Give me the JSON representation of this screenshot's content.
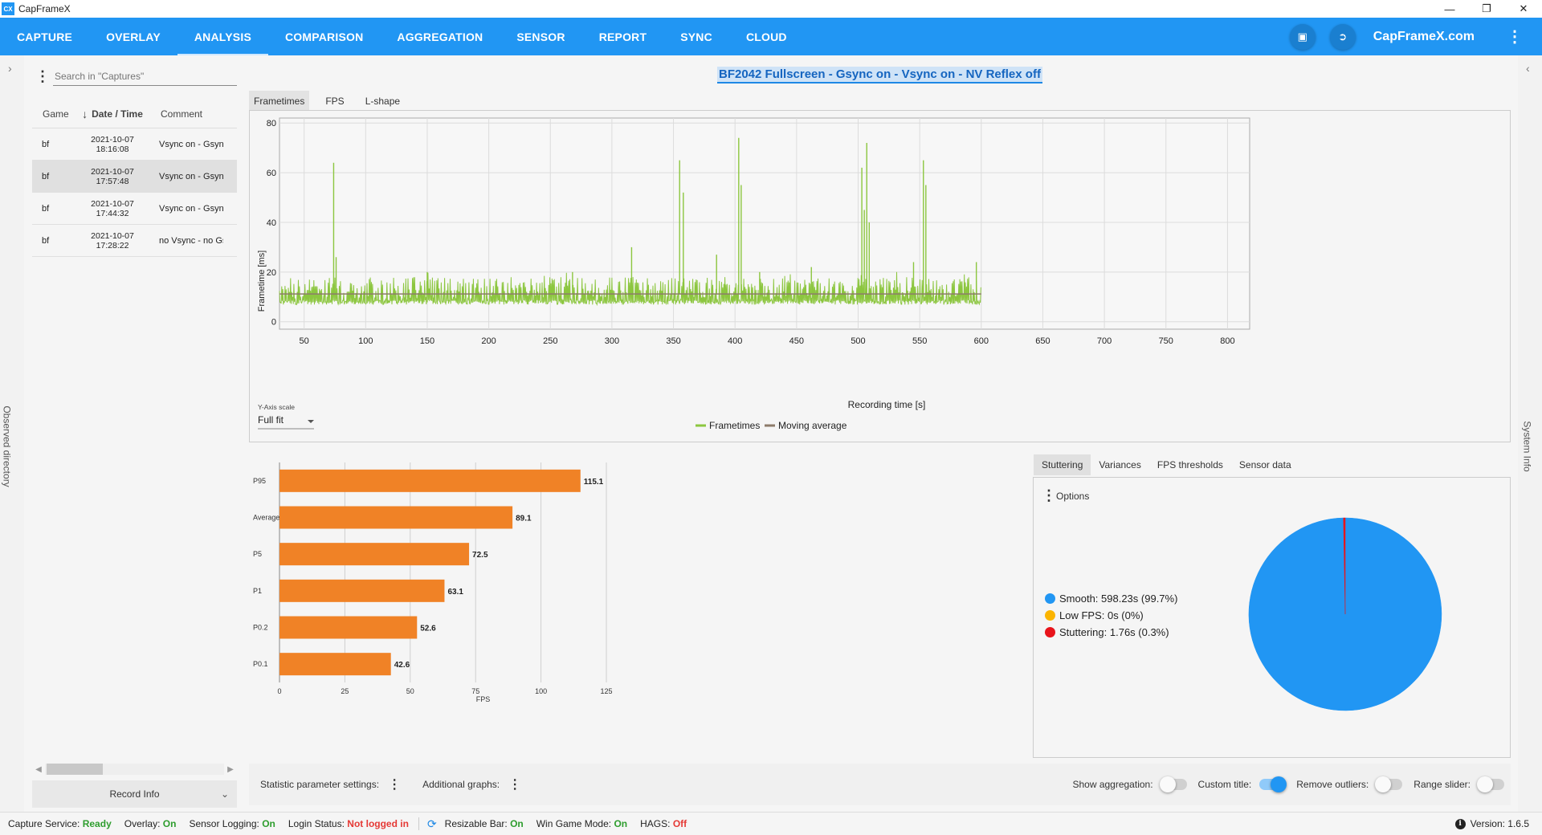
{
  "window": {
    "title": "CapFrameX",
    "logo_text": "CX"
  },
  "nav": {
    "tabs": [
      "CAPTURE",
      "OVERLAY",
      "ANALYSIS",
      "COMPARISON",
      "AGGREGATION",
      "SENSOR",
      "REPORT",
      "SYNC",
      "CLOUD"
    ],
    "active_tab": "ANALYSIS",
    "site_link": "CapFrameX.com"
  },
  "side": {
    "left_vertical_label": "Observed directory",
    "right_vertical_label": "System Info"
  },
  "captures": {
    "search_placeholder": "Search in \"Captures\"",
    "columns": {
      "game": "Game",
      "date": "Date / Time",
      "comment": "Comment"
    },
    "rows": [
      {
        "game": "bf",
        "date": "2021-10-07",
        "time": "18:16:08",
        "comment": "Vsync on - Gsync"
      },
      {
        "game": "bf",
        "date": "2021-10-07",
        "time": "17:57:48",
        "comment": "Vsync on - Gsync"
      },
      {
        "game": "bf",
        "date": "2021-10-07",
        "time": "17:44:32",
        "comment": "Vsync on - Gsync"
      },
      {
        "game": "bf",
        "date": "2021-10-07",
        "time": "17:28:22",
        "comment": "no Vsync - no Gsync"
      }
    ],
    "selected_index": 1,
    "record_info_label": "Record Info"
  },
  "analysis": {
    "title": "BF2042 Fullscreen - Gsync on - Vsync on - NV Reflex off",
    "chart_tabs": [
      "Frametimes",
      "FPS",
      "L-shape"
    ],
    "active_chart_tab": "Frametimes",
    "y_axis_scale_label": "Y-Axis scale",
    "y_axis_scale_value": "Full fit",
    "right_tabs": [
      "Stuttering",
      "Variances",
      "FPS thresholds",
      "Sensor data"
    ],
    "active_right_tab": "Stuttering",
    "options_label": "Options"
  },
  "chart_data": [
    {
      "type": "line",
      "xlabel": "Recording time [s]",
      "ylabel": "Frametime [ms]",
      "xlim": [
        30,
        818
      ],
      "ylim": [
        -3,
        82
      ],
      "x_ticks": [
        50,
        100,
        150,
        200,
        250,
        300,
        350,
        400,
        450,
        500,
        550,
        600,
        650,
        700,
        750,
        800
      ],
      "y_ticks": [
        0,
        20,
        40,
        60,
        80
      ],
      "grid": true,
      "legend_placement": "bottom",
      "series": [
        {
          "name": "Frametimes",
          "color": "#8cc63f",
          "x_range": [
            30,
            600
          ],
          "baseline": 11.2,
          "noise_band": [
            7,
            18
          ]
        },
        {
          "name": "Moving average",
          "color": "#8d7b6a",
          "x_range": [
            30,
            600
          ],
          "values": 11.2
        }
      ],
      "spikes": [
        {
          "x": 74,
          "y": 64
        },
        {
          "x": 76,
          "y": 26
        },
        {
          "x": 150,
          "y": 20
        },
        {
          "x": 268,
          "y": 20
        },
        {
          "x": 316,
          "y": 30
        },
        {
          "x": 355,
          "y": 65
        },
        {
          "x": 358,
          "y": 52
        },
        {
          "x": 385,
          "y": 27
        },
        {
          "x": 403,
          "y": 74
        },
        {
          "x": 405,
          "y": 55
        },
        {
          "x": 420,
          "y": 20
        },
        {
          "x": 462,
          "y": 22
        },
        {
          "x": 503,
          "y": 62
        },
        {
          "x": 505,
          "y": 45
        },
        {
          "x": 507,
          "y": 72
        },
        {
          "x": 509,
          "y": 40
        },
        {
          "x": 545,
          "y": 24
        },
        {
          "x": 553,
          "y": 65
        },
        {
          "x": 555,
          "y": 55
        },
        {
          "x": 596,
          "y": 24
        }
      ]
    },
    {
      "type": "bar",
      "orientation": "horizontal",
      "categories": [
        "P95",
        "Average",
        "P5",
        "P1",
        "P0.2",
        "P0.1"
      ],
      "values": [
        115.1,
        89.1,
        72.5,
        63.1,
        52.6,
        42.6
      ],
      "xlabel": "FPS",
      "xlim": [
        0,
        125
      ],
      "x_ticks": [
        0,
        25,
        50,
        75,
        100,
        125
      ],
      "color": "#f08226",
      "grid": true
    },
    {
      "type": "pie",
      "categories": [
        "Smooth",
        "Low FPS",
        "Stuttering"
      ],
      "values": [
        99.7,
        0,
        0.3
      ],
      "labels": [
        "Smooth:  598.23s (99.7%)",
        "Low FPS:  0s (0%)",
        "Stuttering:  1.76s (0.3%)"
      ],
      "colors": [
        "#2196f3",
        "#fbb400",
        "#e8141b"
      ],
      "legend_placement": "left"
    }
  ],
  "settings_bar": {
    "statistic_label": "Statistic parameter settings:",
    "additional_label": "Additional graphs:",
    "toggles": [
      {
        "label": "Show aggregation:",
        "on": false
      },
      {
        "label": "Custom title:",
        "on": true
      },
      {
        "label": "Remove outliers:",
        "on": false
      },
      {
        "label": "Range slider:",
        "on": false
      }
    ]
  },
  "status": {
    "capture_service_label": "Capture Service:",
    "capture_service_value": "Ready",
    "overlay_label": "Overlay:",
    "overlay_value": "On",
    "sensor_label": "Sensor Logging:",
    "sensor_value": "On",
    "login_label": "Login Status:",
    "login_value": "Not logged in",
    "resizable_label": "Resizable Bar:",
    "resizable_value": "On",
    "gamemode_label": "Win Game Mode:",
    "gamemode_value": "On",
    "hags_label": "HAGS:",
    "hags_value": "Off",
    "version_label": "Version:",
    "version_value": "1.6.5"
  }
}
